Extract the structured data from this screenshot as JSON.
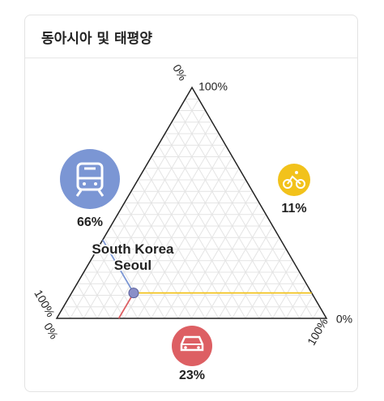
{
  "chart_data": {
    "type": "ternary",
    "title": "동아시아 및 태평양",
    "point_label": [
      "South Korea",
      "Seoul"
    ],
    "components": [
      {
        "color": "#7b96d4",
        "values": [
          66
        ],
        "value_labels": [
          "66%"
        ],
        "ticks": [
          {
            "value": 0,
            "label": "0%"
          },
          {
            "value": 100,
            "label": "100%"
          }
        ]
      },
      {
        "color": "#f2c21b",
        "values": [
          11
        ],
        "value_labels": [
          "11%"
        ],
        "ticks": [
          {
            "value": 100,
            "label": "100%"
          },
          {
            "value": 0,
            "label": "0%"
          }
        ]
      },
      {
        "color": "#dd5f63",
        "values": [
          23
        ],
        "value_labels": [
          "23%"
        ],
        "ticks": [
          {
            "value": 0,
            "label": "0%"
          },
          {
            "value": 100,
            "label": "100%"
          }
        ]
      }
    ],
    "grid": true
  }
}
